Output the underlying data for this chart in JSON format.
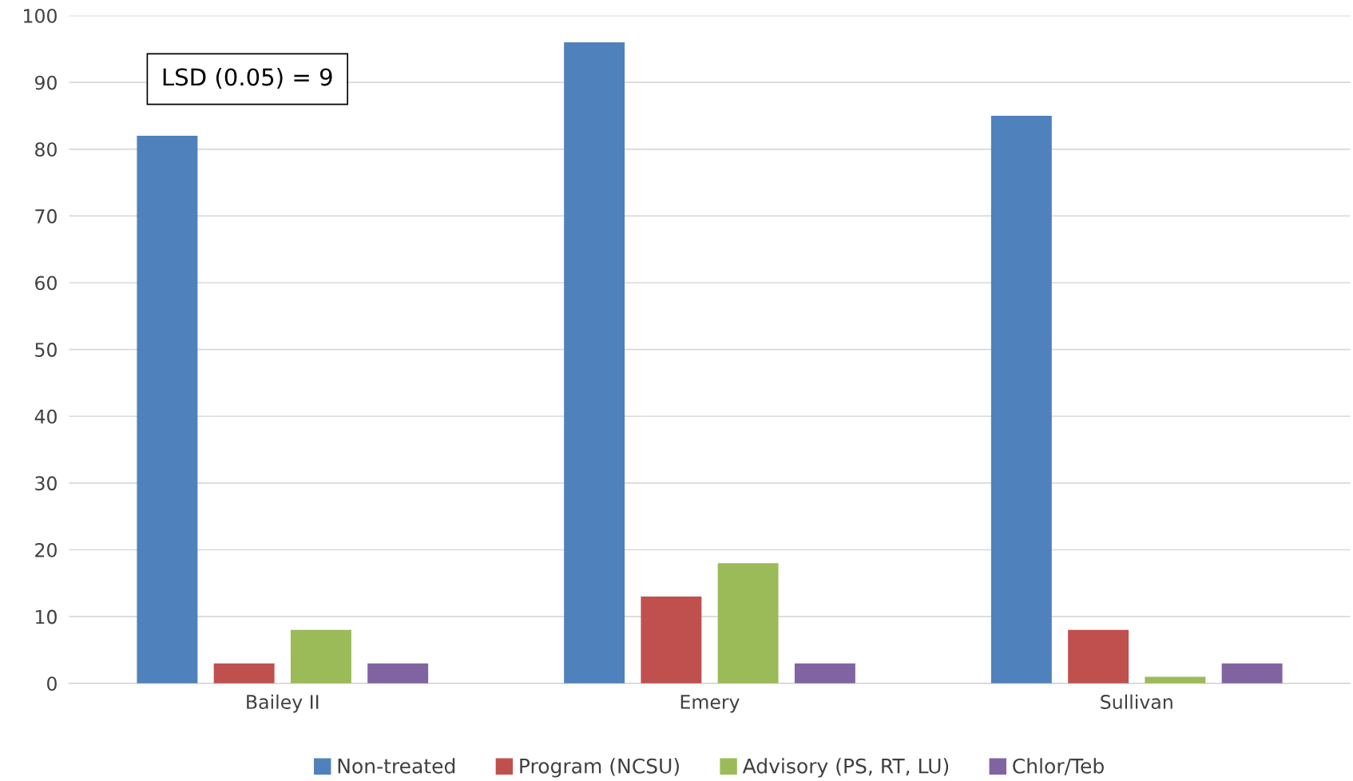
{
  "chart_data": {
    "type": "bar",
    "categories": [
      "Bailey II",
      "Emery",
      "Sullivan"
    ],
    "series": [
      {
        "name": "Non-treated",
        "color": "#4f81bd",
        "values": [
          82,
          96,
          85
        ]
      },
      {
        "name": "Program (NCSU)",
        "color": "#c0504d",
        "values": [
          3,
          13,
          8
        ]
      },
      {
        "name": "Advisory (PS, RT, LU)",
        "color": "#9bbb59",
        "values": [
          8,
          18,
          1
        ]
      },
      {
        "name": "Chlor/Teb",
        "color": "#8064a2",
        "values": [
          3,
          3,
          3
        ]
      }
    ],
    "ylim": [
      0,
      100
    ],
    "yticks": [
      0,
      10,
      20,
      30,
      40,
      50,
      60,
      70,
      80,
      90,
      100
    ],
    "grid": "y",
    "legend": "bottom",
    "annotations": [
      "LSD (0.05) = 9"
    ]
  }
}
